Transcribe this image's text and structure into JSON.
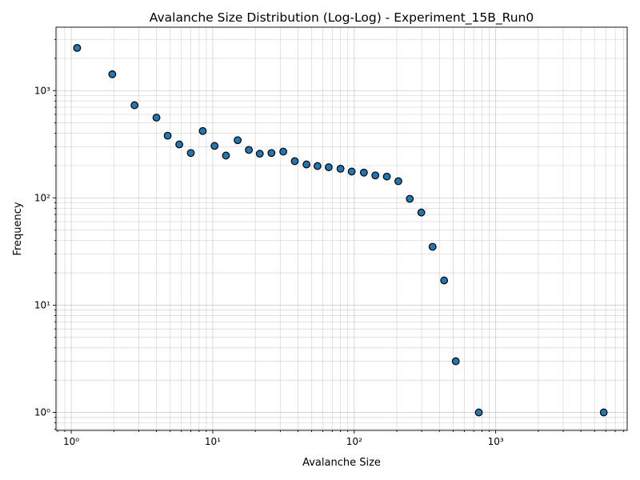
{
  "chart_data": {
    "type": "scatter",
    "title": "Avalanche Size Distribution (Log-Log) - Experiment_15B_Run0",
    "xlabel": "Avalanche Size",
    "ylabel": "Frequency",
    "xscale": "log",
    "yscale": "log",
    "xlim": [
      0.78,
      8500
    ],
    "ylim": [
      0.68,
      3900
    ],
    "grid": "both (major and minor)",
    "legend": "none",
    "x_tick_labels": [
      {
        "value": 1,
        "label": "10⁰"
      },
      {
        "value": 10,
        "label": "10¹"
      },
      {
        "value": 100,
        "label": "10²"
      },
      {
        "value": 1000,
        "label": "10³"
      }
    ],
    "y_tick_labels": [
      {
        "value": 1,
        "label": "10⁰"
      },
      {
        "value": 10,
        "label": "10¹"
      },
      {
        "value": 100,
        "label": "10²"
      },
      {
        "value": 1000,
        "label": "10³"
      }
    ],
    "marker_color": "#1f77b4",
    "edge_color": "#000000",
    "points": [
      {
        "x": 1.1,
        "y": 2500
      },
      {
        "x": 1.95,
        "y": 1420
      },
      {
        "x": 2.8,
        "y": 730
      },
      {
        "x": 4.0,
        "y": 560
      },
      {
        "x": 4.8,
        "y": 380
      },
      {
        "x": 5.8,
        "y": 315
      },
      {
        "x": 7.0,
        "y": 262
      },
      {
        "x": 8.5,
        "y": 420
      },
      {
        "x": 10.3,
        "y": 305
      },
      {
        "x": 12.4,
        "y": 248
      },
      {
        "x": 15.0,
        "y": 345
      },
      {
        "x": 18.0,
        "y": 280
      },
      {
        "x": 21.5,
        "y": 258
      },
      {
        "x": 26.0,
        "y": 262
      },
      {
        "x": 31.5,
        "y": 270
      },
      {
        "x": 38.0,
        "y": 220
      },
      {
        "x": 46.0,
        "y": 205
      },
      {
        "x": 55.0,
        "y": 198
      },
      {
        "x": 66.0,
        "y": 193
      },
      {
        "x": 80.0,
        "y": 187
      },
      {
        "x": 96.0,
        "y": 176
      },
      {
        "x": 117.0,
        "y": 172
      },
      {
        "x": 141.0,
        "y": 162
      },
      {
        "x": 170.0,
        "y": 158
      },
      {
        "x": 205.0,
        "y": 143
      },
      {
        "x": 247.0,
        "y": 98
      },
      {
        "x": 298.0,
        "y": 73
      },
      {
        "x": 358.0,
        "y": 35
      },
      {
        "x": 432.0,
        "y": 17
      },
      {
        "x": 522.0,
        "y": 3
      },
      {
        "x": 760.0,
        "y": 1
      },
      {
        "x": 5800.0,
        "y": 1
      }
    ]
  }
}
